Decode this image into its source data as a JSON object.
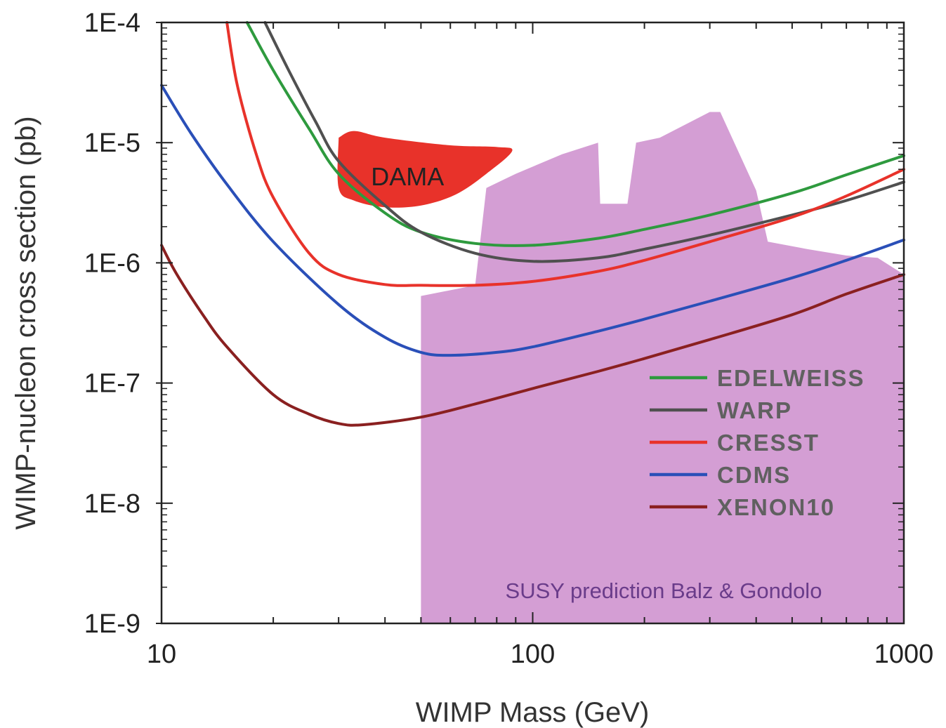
{
  "chart_data": {
    "type": "line",
    "xlabel": "WIMP Mass (GeV)",
    "ylabel": "WIMP-nucleon cross section (pb)",
    "xscale": "log",
    "yscale": "log",
    "xlim": [
      10,
      1000
    ],
    "ylim": [
      1e-09,
      0.0001
    ],
    "x_ticks": [
      {
        "value": 10,
        "label": "10"
      },
      {
        "value": 100,
        "label": "100"
      },
      {
        "value": 1000,
        "label": "1000"
      }
    ],
    "y_ticks": [
      {
        "value": 0.0001,
        "label": "1E-4"
      },
      {
        "value": 1e-05,
        "label": "1E-5"
      },
      {
        "value": 1e-06,
        "label": "1E-6"
      },
      {
        "value": 1e-07,
        "label": "1E-7"
      },
      {
        "value": 1e-08,
        "label": "1E-8"
      },
      {
        "value": 1e-09,
        "label": "1E-9"
      }
    ],
    "grid": false,
    "legend_position": "lower-right",
    "series": [
      {
        "name": "EDELWEISS",
        "color": "#2e9a3e",
        "points": [
          [
            17,
            0.0001
          ],
          [
            20,
            4e-05
          ],
          [
            25,
            1.3e-05
          ],
          [
            30,
            5.5e-06
          ],
          [
            40,
            2.6e-06
          ],
          [
            50,
            1.8e-06
          ],
          [
            70,
            1.45e-06
          ],
          [
            100,
            1.4e-06
          ],
          [
            150,
            1.6e-06
          ],
          [
            200,
            1.9e-06
          ],
          [
            300,
            2.5e-06
          ],
          [
            500,
            3.8e-06
          ],
          [
            700,
            5.4e-06
          ],
          [
            1000,
            7.8e-06
          ]
        ]
      },
      {
        "name": "WARP",
        "color": "#505050",
        "points": [
          [
            19,
            0.0001
          ],
          [
            22,
            4e-05
          ],
          [
            26,
            1.5e-05
          ],
          [
            30,
            7e-06
          ],
          [
            40,
            3e-06
          ],
          [
            50,
            1.8e-06
          ],
          [
            70,
            1.2e-06
          ],
          [
            100,
            1.03e-06
          ],
          [
            150,
            1.1e-06
          ],
          [
            200,
            1.3e-06
          ],
          [
            300,
            1.7e-06
          ],
          [
            500,
            2.5e-06
          ],
          [
            700,
            3.3e-06
          ],
          [
            1000,
            4.7e-06
          ]
        ]
      },
      {
        "name": "CRESST",
        "color": "#e8322a",
        "points": [
          [
            15,
            0.0001
          ],
          [
            16,
            3e-05
          ],
          [
            18,
            8e-06
          ],
          [
            20,
            3.5e-06
          ],
          [
            25,
            1.2e-06
          ],
          [
            30,
            8e-07
          ],
          [
            40,
            6.6e-07
          ],
          [
            50,
            6.5e-07
          ],
          [
            70,
            6.5e-07
          ],
          [
            100,
            7e-07
          ],
          [
            150,
            8.5e-07
          ],
          [
            200,
            1.05e-06
          ],
          [
            300,
            1.5e-06
          ],
          [
            500,
            2.4e-06
          ],
          [
            700,
            3.6e-06
          ],
          [
            1000,
            6e-06
          ]
        ]
      },
      {
        "name": "CDMS",
        "color": "#2a4fb8",
        "points": [
          [
            10,
            3e-05
          ],
          [
            12,
            1.2e-05
          ],
          [
            15,
            4.5e-06
          ],
          [
            20,
            1.5e-06
          ],
          [
            30,
            4.5e-07
          ],
          [
            40,
            2.4e-07
          ],
          [
            50,
            1.8e-07
          ],
          [
            60,
            1.7e-07
          ],
          [
            80,
            1.8e-07
          ],
          [
            100,
            2e-07
          ],
          [
            150,
            2.7e-07
          ],
          [
            200,
            3.4e-07
          ],
          [
            300,
            4.8e-07
          ],
          [
            500,
            7.5e-07
          ],
          [
            700,
            1.05e-06
          ],
          [
            1000,
            1.55e-06
          ]
        ]
      },
      {
        "name": "XENON10",
        "color": "#8a2020",
        "points": [
          [
            10,
            1.4e-06
          ],
          [
            11,
            8e-07
          ],
          [
            13,
            3.6e-07
          ],
          [
            15,
            2e-07
          ],
          [
            20,
            8e-08
          ],
          [
            25,
            5.5e-08
          ],
          [
            30,
            4.6e-08
          ],
          [
            35,
            4.5e-08
          ],
          [
            50,
            5.2e-08
          ],
          [
            70,
            6.7e-08
          ],
          [
            100,
            9e-08
          ],
          [
            150,
            1.25e-07
          ],
          [
            200,
            1.6e-07
          ],
          [
            300,
            2.3e-07
          ],
          [
            500,
            3.7e-07
          ],
          [
            700,
            5.5e-07
          ],
          [
            1000,
            8e-07
          ]
        ]
      }
    ],
    "regions": [
      {
        "label": "DAMA",
        "color": "#e8322a",
        "points": [
          [
            30,
            1.1e-05
          ],
          [
            33,
            1.25e-05
          ],
          [
            40,
            1.1e-05
          ],
          [
            60,
            9.5e-06
          ],
          [
            80,
            9.2e-06
          ],
          [
            88,
            8.5e-06
          ],
          [
            75,
            5.5e-06
          ],
          [
            62,
            3.7e-06
          ],
          [
            50,
            3e-06
          ],
          [
            40,
            2.9e-06
          ],
          [
            33,
            3.3e-06
          ],
          [
            30,
            4.2e-06
          ]
        ]
      },
      {
        "label": "SUSY prediction Balz & Gondolo",
        "color": "#d49ed4",
        "points": [
          [
            50,
            1e-09
          ],
          [
            50,
            5.3e-07
          ],
          [
            70,
            6.5e-07
          ],
          [
            75,
            4.2e-06
          ],
          [
            90,
            5.5e-06
          ],
          [
            120,
            8e-06
          ],
          [
            150,
            1e-05
          ],
          [
            152,
            3.1e-06
          ],
          [
            180,
            3.1e-06
          ],
          [
            190,
            1e-05
          ],
          [
            220,
            1.1e-05
          ],
          [
            300,
            1.8e-05
          ],
          [
            320,
            1.8e-05
          ],
          [
            400,
            4e-06
          ],
          [
            430,
            1.5e-06
          ],
          [
            550,
            1.3e-06
          ],
          [
            700,
            1.15e-06
          ],
          [
            850,
            1.1e-06
          ],
          [
            1000,
            8e-07
          ],
          [
            1000,
            1e-09
          ]
        ]
      }
    ]
  }
}
